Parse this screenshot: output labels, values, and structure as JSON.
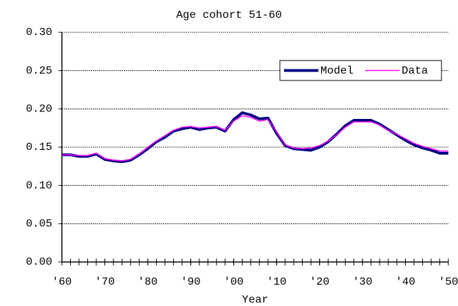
{
  "chart_data": {
    "type": "line",
    "title": "Age cohort 51-60",
    "x_label": "Year",
    "x": [
      1960,
      1962,
      1964,
      1966,
      1968,
      1970,
      1972,
      1974,
      1976,
      1978,
      1980,
      1982,
      1984,
      1986,
      1988,
      1990,
      1992,
      1994,
      1996,
      1998,
      2000,
      2002,
      2004,
      2006,
      2008,
      2010,
      2012,
      2014,
      2016,
      2018,
      2020,
      2022,
      2024,
      2026,
      2028,
      2030,
      2032,
      2034,
      2036,
      2038,
      2040,
      2042,
      2044,
      2046,
      2048,
      2050
    ],
    "series": [
      {
        "name": "Model",
        "color": "#000080",
        "values": [
          0.14,
          0.14,
          0.138,
          0.138,
          0.141,
          0.134,
          0.132,
          0.131,
          0.133,
          0.14,
          0.148,
          0.157,
          0.163,
          0.171,
          0.174,
          0.176,
          0.173,
          0.175,
          0.176,
          0.171,
          0.186,
          0.195,
          0.192,
          0.187,
          0.188,
          0.168,
          0.152,
          0.148,
          0.147,
          0.146,
          0.15,
          0.157,
          0.167,
          0.178,
          0.185,
          0.185,
          0.185,
          0.18,
          0.173,
          0.166,
          0.159,
          0.153,
          0.149,
          0.146,
          0.142,
          0.142
        ]
      },
      {
        "name": "Data",
        "color": "#ff00ff",
        "values": [
          0.14,
          0.14,
          0.139,
          0.139,
          0.142,
          0.135,
          0.133,
          0.132,
          0.134,
          0.141,
          0.15,
          0.158,
          0.165,
          0.172,
          0.176,
          0.177,
          0.175,
          0.176,
          0.177,
          0.172,
          0.184,
          0.191,
          0.189,
          0.184,
          0.186,
          0.17,
          0.153,
          0.149,
          0.148,
          0.149,
          0.152,
          0.158,
          0.166,
          0.176,
          0.183,
          0.183,
          0.183,
          0.179,
          0.172,
          0.167,
          0.161,
          0.155,
          0.151,
          0.148,
          0.145,
          0.145
        ]
      }
    ],
    "xlim": [
      1960,
      2050
    ],
    "xticks": [
      {
        "value": 1960,
        "label": "'60"
      },
      {
        "value": 1970,
        "label": "'70"
      },
      {
        "value": 1980,
        "label": "'80"
      },
      {
        "value": 1990,
        "label": "'90"
      },
      {
        "value": 2000,
        "label": "'00"
      },
      {
        "value": 2010,
        "label": "'10"
      },
      {
        "value": 2020,
        "label": "'20"
      },
      {
        "value": 2030,
        "label": "'30"
      },
      {
        "value": 2040,
        "label": "'40"
      },
      {
        "value": 2050,
        "label": "'50"
      }
    ],
    "ylim": [
      0,
      0.3
    ],
    "yticks": [
      {
        "value": 0,
        "label": "0.00"
      },
      {
        "value": 0.05,
        "label": "0.05"
      },
      {
        "value": 0.1,
        "label": "0.10"
      },
      {
        "value": 0.15,
        "label": "0.15"
      },
      {
        "value": 0.2,
        "label": "0.20"
      },
      {
        "value": 0.25,
        "label": "0.25"
      },
      {
        "value": 0.3,
        "label": "0.30"
      }
    ],
    "grid": true,
    "legend": "upper right"
  }
}
